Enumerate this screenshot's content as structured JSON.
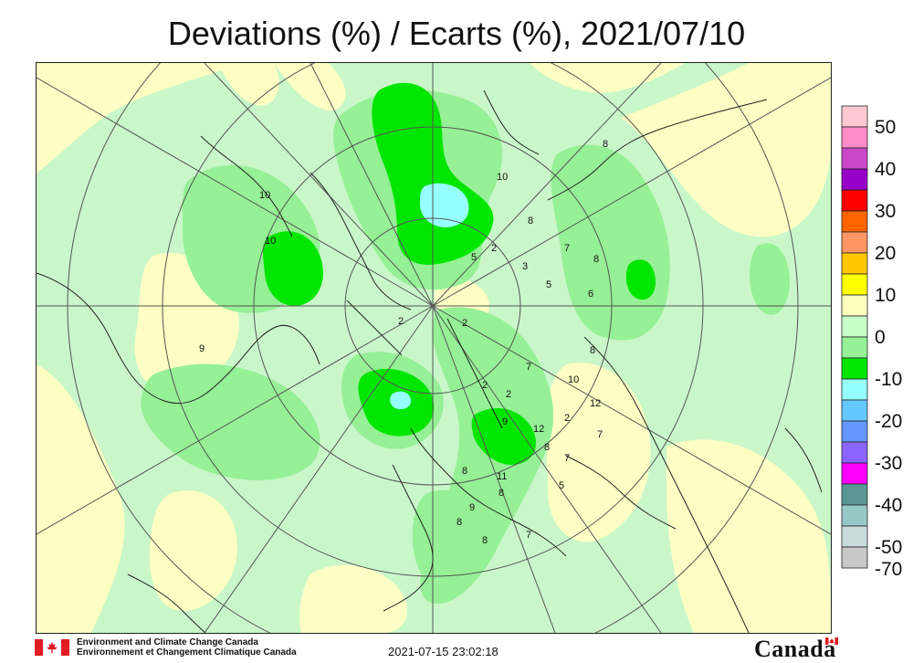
{
  "title": "Deviations (%) / Ecarts (%), 2021/07/10",
  "legend": {
    "labels": [
      "50",
      "40",
      "30",
      "20",
      "10",
      "0",
      "-10",
      "-20",
      "-30",
      "-40",
      "-50",
      "-70"
    ],
    "colors": [
      "#ffc8d2",
      "#ff8cc8",
      "#cc46c8",
      "#9600c8",
      "#ff0000",
      "#ff6400",
      "#ff9664",
      "#ffc800",
      "#ffff00",
      "#ffffbe",
      "#c8ffc8",
      "#96f096",
      "#00e600",
      "#96ffff",
      "#64c8ff",
      "#6496ff",
      "#8c64ff",
      "#ff00ff",
      "#5a9696",
      "#96c8c8",
      "#c8dcdc",
      "#c8c8c8"
    ]
  },
  "map": {
    "background_color": "#c9f7c9",
    "contour_labels": [
      "10",
      "10",
      "8",
      "10",
      "5",
      "2",
      "3",
      "8",
      "8",
      "5",
      "7",
      "2",
      "6",
      "2",
      "8",
      "9",
      "7",
      "2",
      "2",
      "10",
      "9",
      "12",
      "2",
      "8",
      "12",
      "7",
      "7",
      "11",
      "8",
      "8",
      "9",
      "8",
      "8",
      "7",
      "5"
    ]
  },
  "footer": {
    "agency_en": "Environment and Climate Change Canada",
    "agency_fr": "Environnement et Changement Climatique Canada",
    "timestamp": "2021-07-15 23:02:18",
    "wordmark": "Canada"
  }
}
